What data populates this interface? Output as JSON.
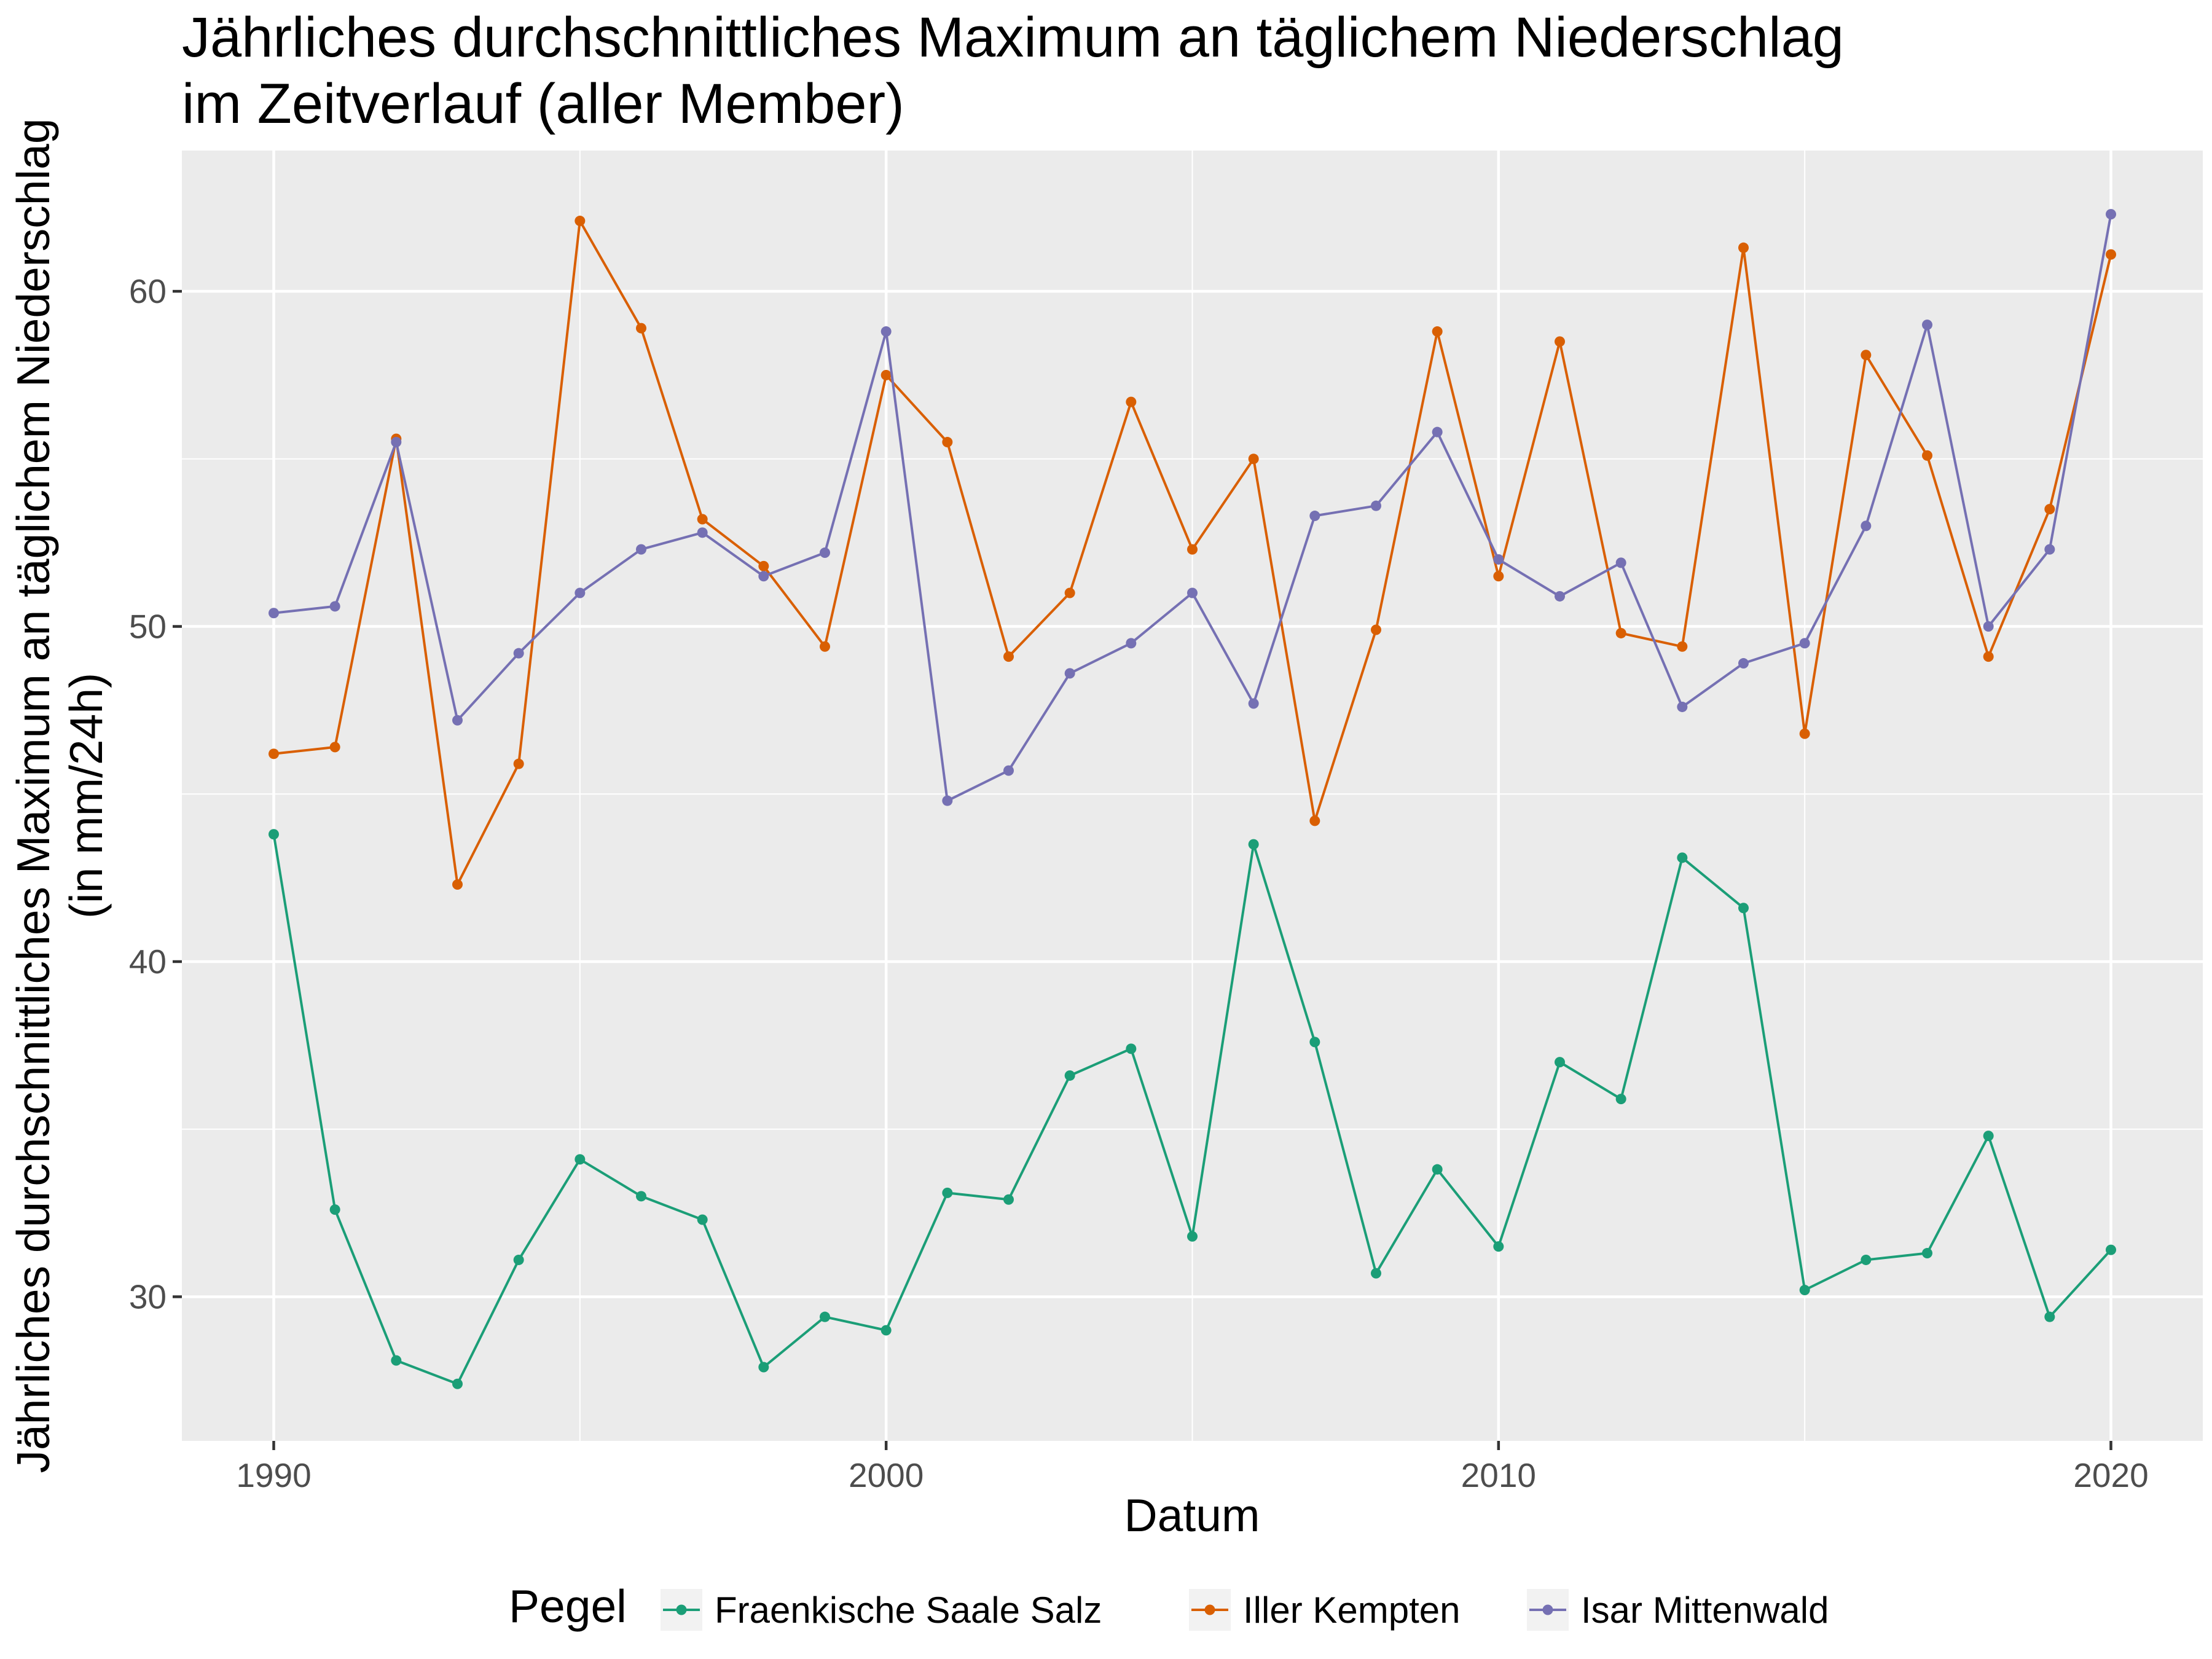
{
  "chart_data": {
    "type": "line",
    "title_lines": [
      "Jährliches durchschnittliches Maximum an täglichem Niederschlag",
      "im Zeitverlauf (aller Member)"
    ],
    "xlabel": "Datum",
    "ylabel_lines": [
      "Jährliches durchschnittliches Maximum an täglichem Niederschlag",
      "(in mm/24h)"
    ],
    "xlim": [
      1988.5,
      2021.5
    ],
    "ylim": [
      25.7,
      64.2
    ],
    "x_ticks": [
      1990,
      2000,
      2010,
      2020
    ],
    "y_ticks": [
      30,
      40,
      50,
      60
    ],
    "grid": true,
    "legend": {
      "title": "Pegel",
      "position": "bottom"
    },
    "x": [
      1990,
      1991,
      1992,
      1993,
      1994,
      1995,
      1996,
      1997,
      1998,
      1999,
      2000,
      2001,
      2002,
      2003,
      2004,
      2005,
      2006,
      2007,
      2008,
      2009,
      2010,
      2011,
      2012,
      2013,
      2014,
      2015,
      2016,
      2017,
      2018,
      2019,
      2020
    ],
    "series": [
      {
        "name": "Fraenkische Saale Salz",
        "color": "#1b9e77",
        "values": [
          43.8,
          32.6,
          28.1,
          27.4,
          31.1,
          34.1,
          33.0,
          32.3,
          27.9,
          29.4,
          29.0,
          33.1,
          32.9,
          36.6,
          37.4,
          31.8,
          43.5,
          37.6,
          30.7,
          33.8,
          31.5,
          37.0,
          35.9,
          43.1,
          41.6,
          30.2,
          31.1,
          31.3,
          34.8,
          29.4,
          31.4
        ]
      },
      {
        "name": "Iller Kempten",
        "color": "#d95f02",
        "values": [
          46.2,
          46.4,
          55.6,
          42.3,
          45.9,
          62.1,
          58.9,
          53.2,
          51.8,
          49.4,
          57.5,
          55.5,
          49.1,
          51.0,
          56.7,
          52.3,
          55.0,
          44.2,
          49.9,
          58.8,
          51.5,
          58.5,
          49.8,
          49.4,
          61.3,
          46.8,
          58.1,
          55.1,
          49.1,
          53.5,
          61.1
        ]
      },
      {
        "name": "Isar Mittenwald",
        "color": "#7570b3",
        "values": [
          50.4,
          50.6,
          55.5,
          47.2,
          49.2,
          51.0,
          52.3,
          52.8,
          51.5,
          52.2,
          58.8,
          44.8,
          45.7,
          48.6,
          49.5,
          51.0,
          47.7,
          53.3,
          53.6,
          55.8,
          52.0,
          50.9,
          51.9,
          47.6,
          48.9,
          49.5,
          53.0,
          59.0,
          50.0,
          52.3,
          62.3
        ]
      }
    ]
  }
}
